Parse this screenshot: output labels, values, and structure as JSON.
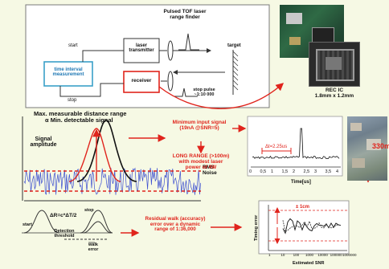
{
  "colors": {
    "accent": "#e0241c",
    "background": "#f6f9e4",
    "box_blue": "#3aa0c8",
    "noise_blue": "#3d4fd0"
  },
  "block_diagram": {
    "title_line1": "Pulsed TOF laser",
    "title_line2": "range finder",
    "start": "start",
    "stop": "stop",
    "laser_line1": "laser",
    "laser_line2": "transmitter",
    "tim_line1": "time interval",
    "tim_line2": "measurement",
    "receiver": "receiver",
    "target": "target",
    "stop_pulse_line1": "stop pulse",
    "stop_pulse_line2": "~1:10 000"
  },
  "rec_ic": {
    "line1": "REC IC",
    "line2": "1.8mm x 1.2mm"
  },
  "distance": {
    "line1": "Max. measurable distance range",
    "line2": "α Min.  detectable signal",
    "signal_line1": "Signal",
    "signal_line2": "amplitude",
    "rms_line1": "RMS",
    "rms_line2": "Noise"
  },
  "min_input": {
    "line1": "Minimum input signal",
    "line2": "(19nA @SNR=5)",
    "long_line1": "LONG RANGE (>100m)",
    "long_line2": "with modest laser",
    "long_line3": "power of 4W"
  },
  "scope": {
    "dt_label": "Δt=2.25us",
    "ticks": [
      "0",
      "0,5",
      "1",
      "1,5",
      "2",
      "2,5",
      "3",
      "3,5",
      "4"
    ],
    "xlabel": "Time[us]"
  },
  "photo_label": "330m",
  "walk": {
    "start": "start",
    "formula": "ΔR=c*ΔT/2",
    "det_line1": "Detection",
    "det_line2": "threshold",
    "stop": "stop",
    "walk_line1": "walk",
    "walk_line2": "error"
  },
  "residual": {
    "line1": "Residual walk (accuracy)",
    "line2": "error over a dynamic",
    "line3": "range of 1:36,000"
  },
  "timing_chart": {
    "ylabel": "Timing error",
    "band_label": "± 1cm",
    "ticks": [
      "1",
      "10",
      "100",
      "1000",
      "10000",
      "100000",
      "1000000"
    ],
    "xlabel": "Estimated SNR"
  }
}
